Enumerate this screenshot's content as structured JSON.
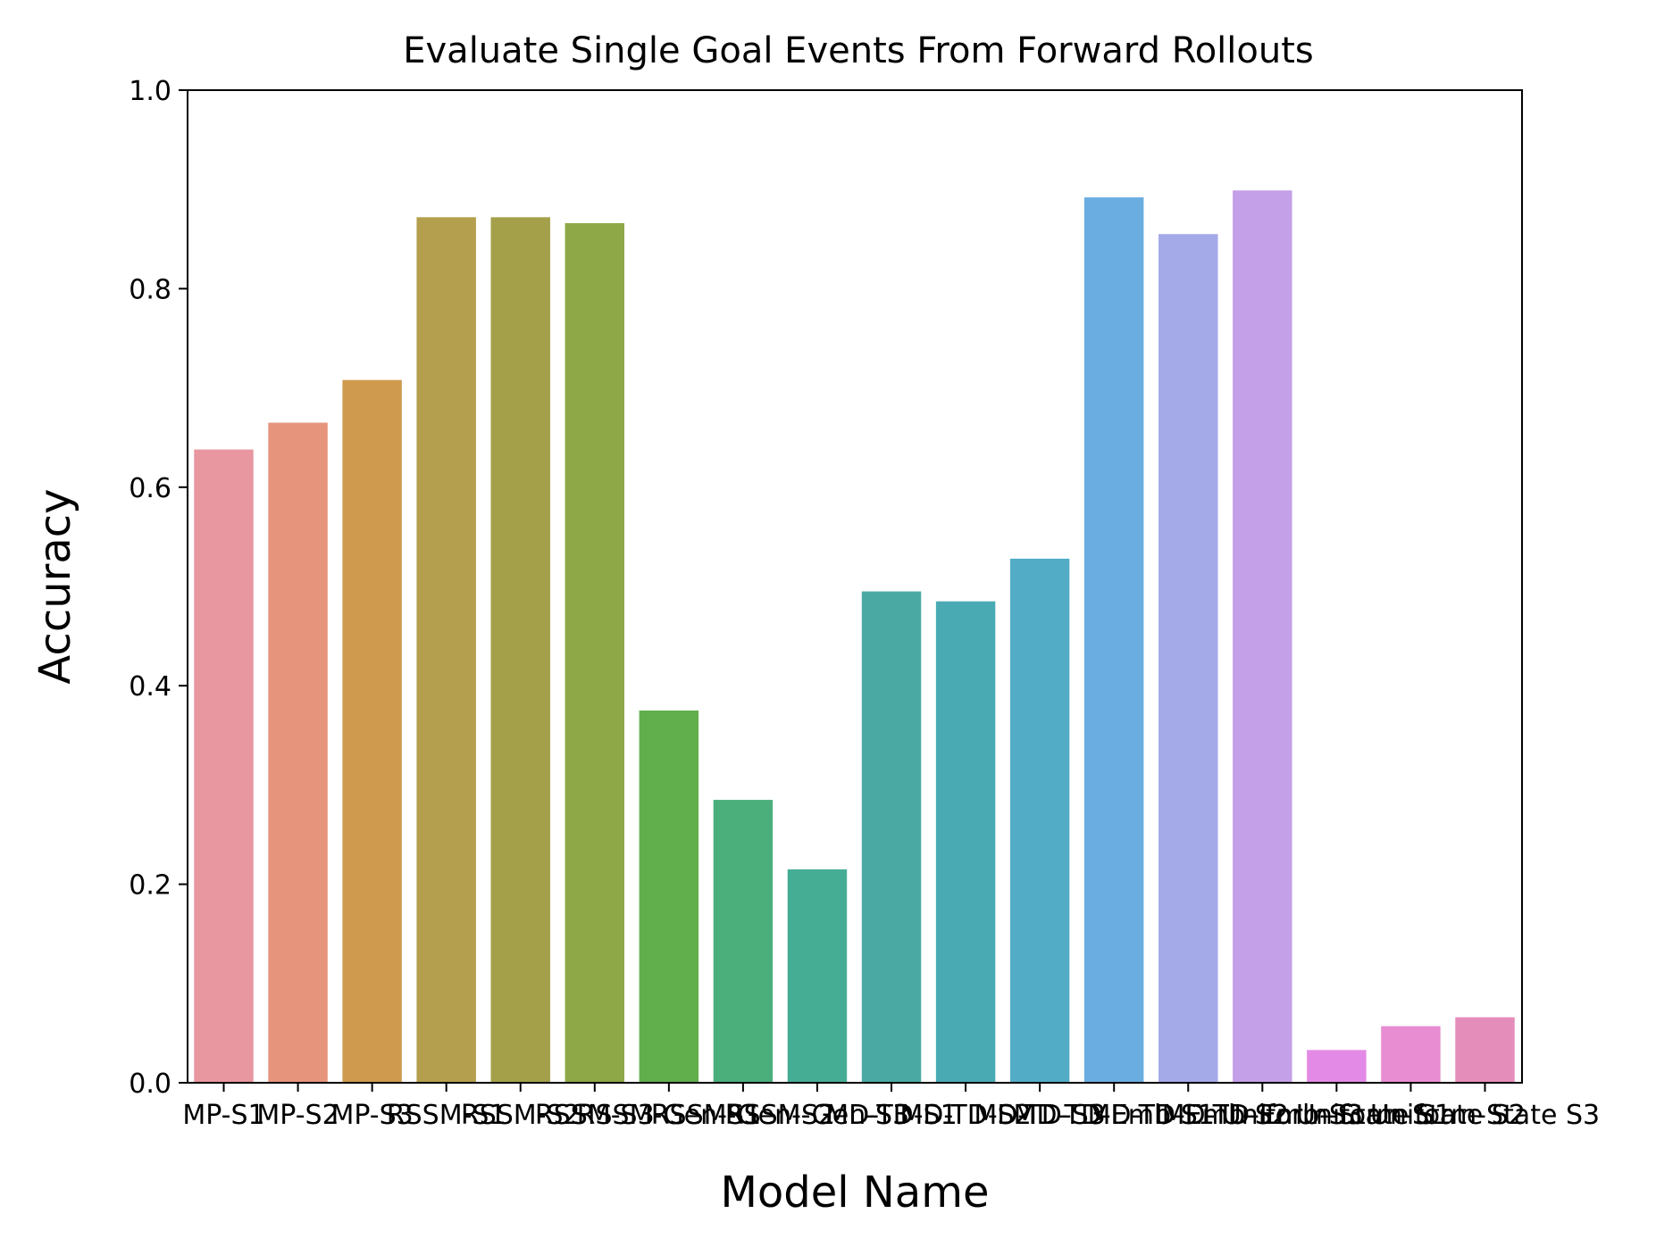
{
  "chart_data": {
    "type": "bar",
    "title": "Evaluate Single Goal Events From Forward Rollouts",
    "xlabel": "Model Name",
    "ylabel": "Accuracy",
    "ylim": [
      0,
      1.0
    ],
    "yticks": [
      "0.0",
      "0.2",
      "0.4",
      "0.6",
      "0.8",
      "1.0"
    ],
    "grid": false,
    "legend": "none",
    "categories": [
      "MP-S1",
      "MP-S2",
      "MP-S3",
      "RSSM-S1",
      "RSSM-S2",
      "RSSM-S3",
      "RSSM-Gen-S1",
      "RSSM-Gen-S2",
      "RSSM-Gen-S3",
      "MD-TD-S1",
      "MD-TD-S2",
      "MD-TD-S3",
      "MD-TD-Emb-S1",
      "MD-TD-Emb-S2",
      "MD-TD-Emb-S3",
      "Uniform-State S1",
      "Uniform-State S2",
      "Uniform-State S3"
    ],
    "values": [
      0.638,
      0.665,
      0.708,
      0.872,
      0.872,
      0.866,
      0.375,
      0.285,
      0.215,
      0.495,
      0.485,
      0.528,
      0.892,
      0.855,
      0.899,
      0.033,
      0.057,
      0.066
    ],
    "colors": [
      "#e8969f",
      "#e6957c",
      "#cf9a4e",
      "#b39f4d",
      "#a4a04a",
      "#8ea848",
      "#61ae4c",
      "#4baf7b",
      "#46ad95",
      "#4aaaa3",
      "#4aaab4",
      "#52acc6",
      "#6aade0",
      "#a4a9e8",
      "#c4a0e8",
      "#e38ae6",
      "#e88dd2",
      "#e58dba"
    ]
  }
}
